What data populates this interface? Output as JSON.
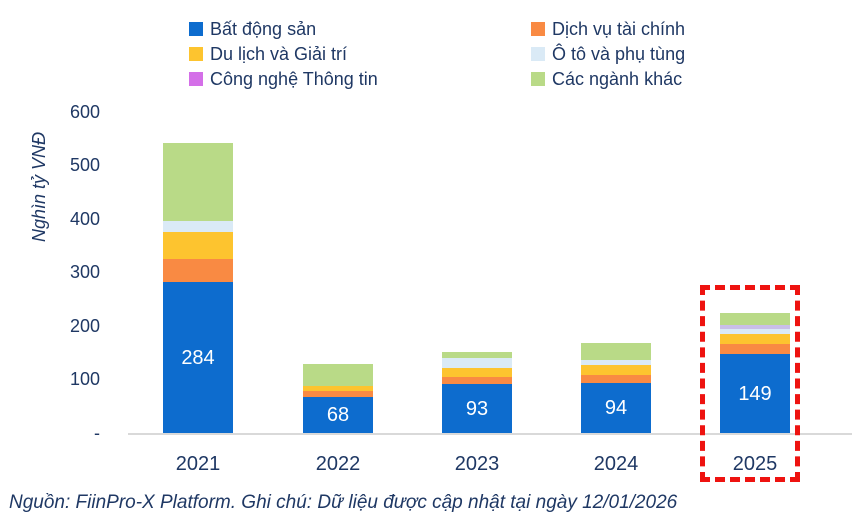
{
  "colors": {
    "blue": "#0d6cce",
    "orange": "#f98a43",
    "yellow": "#fdc42f",
    "lightblue": "#daeaf6",
    "purple": "#d46fe8",
    "purple_segment": "#c9bfe7",
    "green": "#b9da87",
    "text_navy": "#1f3864",
    "axis_line": "#d9d9d9",
    "highlight_red": "#ee1310",
    "bar_label": "#ffffff"
  },
  "y_axis": {
    "title": "Nghìn tỷ VNĐ",
    "ticks": [
      {
        "label": "600",
        "value": 600
      },
      {
        "label": "500",
        "value": 500
      },
      {
        "label": "400",
        "value": 400
      },
      {
        "label": "300",
        "value": 300
      },
      {
        "label": "200",
        "value": 200
      },
      {
        "label": "100",
        "value": 100
      },
      {
        "label": "-",
        "value": 0
      }
    ]
  },
  "chart_data": {
    "type": "bar",
    "stacked": true,
    "ylabel": "Nghìn tỷ VNĐ",
    "ylim": [
      0,
      600
    ],
    "grid": false,
    "legend_position": "top",
    "categories": [
      "2021",
      "2022",
      "2023",
      "2024",
      "2025"
    ],
    "series": [
      {
        "name": "Bất động sản",
        "color_key": "blue",
        "values": [
          284,
          68,
          93,
          94,
          149
        ]
      },
      {
        "name": "Dịch vụ tài chính",
        "color_key": "orange",
        "values": [
          42,
          12,
          12,
          15,
          18
        ]
      },
      {
        "name": "Du lịch và Giải trí",
        "color_key": "yellow",
        "values": [
          52,
          8,
          17,
          20,
          20
        ]
      },
      {
        "name": "Ô tô và phụ tùng",
        "color_key": "lightblue",
        "values": [
          20,
          0,
          19,
          9,
          9
        ]
      },
      {
        "name": "Công nghệ Thông tin",
        "color_key": "purple",
        "segment_color_key": "purple_segment",
        "values": [
          0,
          0,
          0,
          0,
          7
        ]
      },
      {
        "name": "Các ngành khác",
        "color_key": "green",
        "values": [
          146,
          42,
          12,
          31,
          22
        ]
      }
    ],
    "totals": [
      544,
      130,
      153,
      169,
      225
    ],
    "bar_labels": [
      "284",
      "68",
      "93",
      "94",
      "149"
    ],
    "highlighted_category": "2025"
  },
  "footer": {
    "text": "Nguồn: FiinPro-X Platform. Ghi chú: Dữ liệu được cập nhật tại ngày 12/01/2026"
  }
}
